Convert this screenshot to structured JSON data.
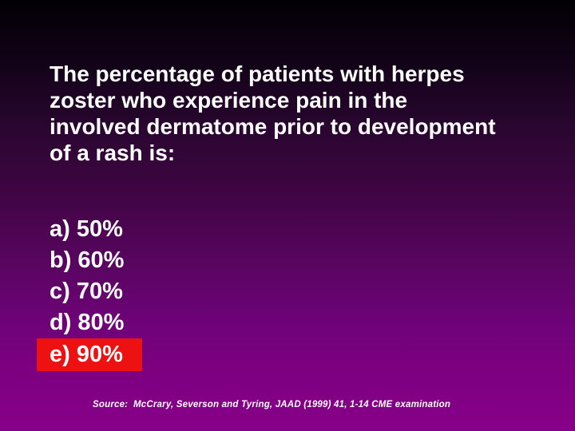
{
  "slide": {
    "question_lines": [
      "The percentage of patients with herpes",
      "zoster who experience pain in the",
      "involved dermatome prior to development",
      "of a rash is:"
    ],
    "options": [
      {
        "label": "a) 50%",
        "highlighted": false
      },
      {
        "label": "b) 60%",
        "highlighted": false
      },
      {
        "label": "c) 70%",
        "highlighted": false
      },
      {
        "label": "d) 80%",
        "highlighted": false
      },
      {
        "label": "e) 90%",
        "highlighted": true
      }
    ],
    "source": "Source:  McCrary, Severson and Tyring, JAAD (1999) 41, 1-14 CME examination",
    "colors": {
      "background_top": "#020004",
      "background_bottom": "#870089",
      "highlight": "#ee1111",
      "text": "#ffffff"
    }
  }
}
